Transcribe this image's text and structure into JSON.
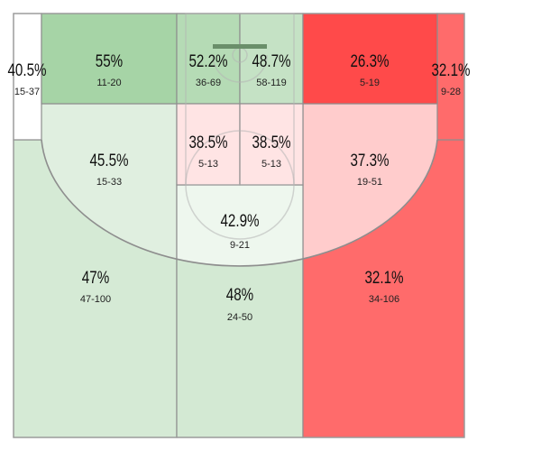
{
  "chart_data": {
    "type": "heatmap",
    "title": "",
    "zones": [
      {
        "id": "left-corner-three",
        "pct": "40.5%",
        "made": 15,
        "attempts": 37,
        "label": "15-37",
        "color": "#ffffff"
      },
      {
        "id": "right-corner-three",
        "pct": "32.1%",
        "made": 9,
        "attempts": 28,
        "label": "9-28",
        "color": "#ff6b6b"
      },
      {
        "id": "left-baseline-mid",
        "pct": "55%",
        "made": 11,
        "attempts": 20,
        "label": "11-20",
        "color": "#a6d4a6"
      },
      {
        "id": "paint-left",
        "pct": "52.2%",
        "made": 36,
        "attempts": 69,
        "label": "36-69",
        "color": "#b5dbb5"
      },
      {
        "id": "paint-right",
        "pct": "48.7%",
        "made": 58,
        "attempts": 119,
        "label": "58-119",
        "color": "#c5e2c5"
      },
      {
        "id": "right-baseline-mid",
        "pct": "26.3%",
        "made": 5,
        "attempts": 19,
        "label": "5-19",
        "color": "#ff4a4a"
      },
      {
        "id": "left-wing-mid",
        "pct": "45.5%",
        "made": 15,
        "attempts": 33,
        "label": "15-33",
        "color": "#e0efe0"
      },
      {
        "id": "lane-left",
        "pct": "38.5%",
        "made": 5,
        "attempts": 13,
        "label": "5-13",
        "color": "#ffe4e4"
      },
      {
        "id": "lane-right",
        "pct": "38.5%",
        "made": 5,
        "attempts": 13,
        "label": "5-13",
        "color": "#ffe4e4"
      },
      {
        "id": "right-wing-mid",
        "pct": "37.3%",
        "made": 19,
        "attempts": 51,
        "label": "19-51",
        "color": "#ffcccc"
      },
      {
        "id": "top-key-mid",
        "pct": "42.9%",
        "made": 9,
        "attempts": 21,
        "label": "9-21",
        "color": "#eef7ee"
      },
      {
        "id": "left-wing-three",
        "pct": "47%",
        "made": 47,
        "attempts": 100,
        "label": "47-100",
        "color": "#d5ead5"
      },
      {
        "id": "top-three",
        "pct": "48%",
        "made": 24,
        "attempts": 50,
        "label": "24-50",
        "color": "#d3e9d3"
      },
      {
        "id": "right-wing-three",
        "pct": "32.1%",
        "made": 34,
        "attempts": 106,
        "label": "34-106",
        "color": "#ff6b6b"
      }
    ]
  }
}
